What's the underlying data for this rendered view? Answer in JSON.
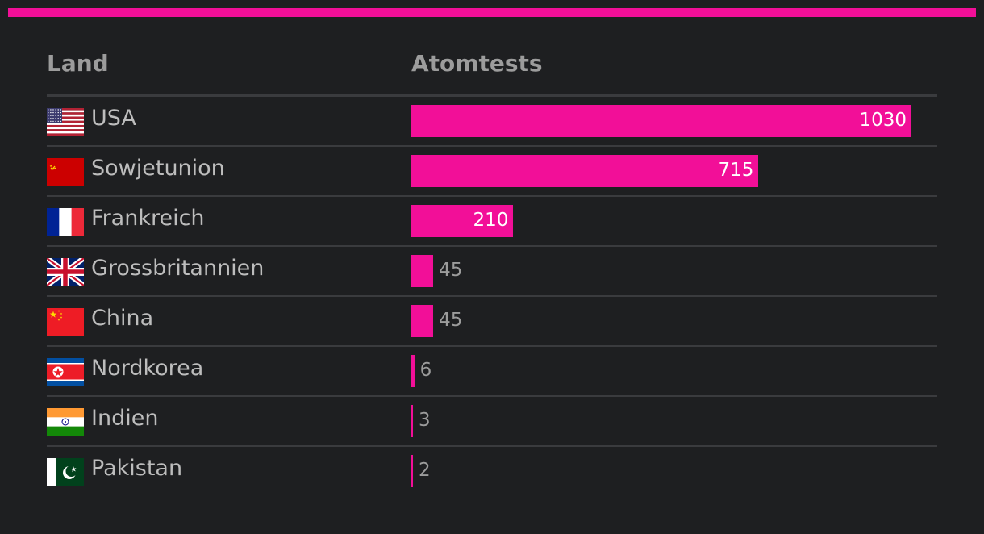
{
  "colors": {
    "accent": "#f20f98",
    "background": "#1e1f21"
  },
  "header": {
    "land": "Land",
    "tests": "Atomtests"
  },
  "chart_data": {
    "type": "bar",
    "orientation": "horizontal",
    "title": "",
    "xlabel": "Atomtests",
    "ylabel": "Land",
    "xlim": [
      0,
      1030
    ],
    "grid": false,
    "legend": "none",
    "categories": [
      "USA",
      "Sowjetunion",
      "Frankreich",
      "Grossbritannien",
      "China",
      "Nordkorea",
      "Indien",
      "Pakistan"
    ],
    "values": [
      1030,
      715,
      210,
      45,
      45,
      6,
      3,
      2
    ],
    "value_labels": [
      "1030",
      "715",
      "210",
      "45",
      "45",
      "6",
      "3",
      "2"
    ],
    "flags": [
      "usa-flag-icon",
      "soviet-union-flag-icon",
      "france-flag-icon",
      "uk-flag-icon",
      "china-flag-icon",
      "north-korea-flag-icon",
      "india-flag-icon",
      "pakistan-flag-icon"
    ]
  }
}
